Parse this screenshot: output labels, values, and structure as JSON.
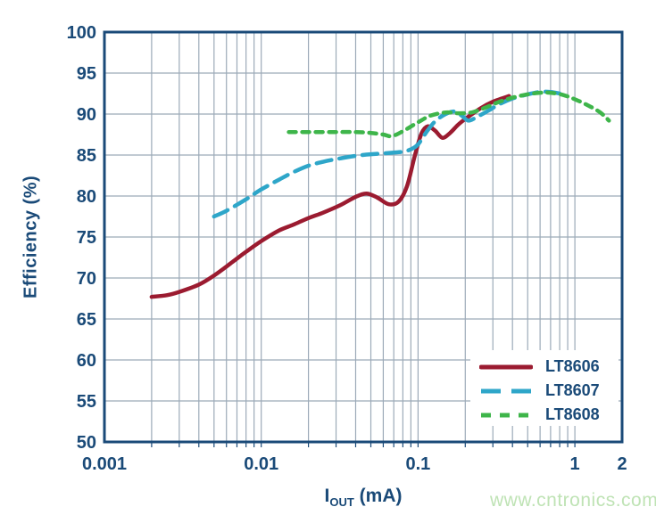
{
  "watermark": {
    "text": "www.cntronics.com"
  },
  "colors": {
    "axis_navy": "#1A4A78",
    "grid_gray": "#9CAAB8",
    "background": "#FFFFFF",
    "watermark_green": "#BFE3B5"
  },
  "chart_data": {
    "type": "line",
    "title": "",
    "ylabel": "Efficiency (%)",
    "xlabel": "IOUT (mA)",
    "xlabel_parts": {
      "symbol": "I",
      "subscript": "OUT",
      "unit": "(mA)"
    },
    "x_scale": "log",
    "xlim": [
      0.001,
      2
    ],
    "ylim": [
      50,
      100
    ],
    "grid": true,
    "legend_position": "bottom-right",
    "y_ticks": [
      {
        "value": 100,
        "label": "100"
      },
      {
        "value": 95,
        "label": "95"
      },
      {
        "value": 90,
        "label": "90"
      },
      {
        "value": 85,
        "label": "85"
      },
      {
        "value": 80,
        "label": "80"
      },
      {
        "value": 75,
        "label": "75"
      },
      {
        "value": 70,
        "label": "70"
      },
      {
        "value": 65,
        "label": "65"
      },
      {
        "value": 60,
        "label": "60"
      },
      {
        "value": 55,
        "label": "55"
      },
      {
        "value": 50,
        "label": "50"
      }
    ],
    "x_ticks": [
      {
        "value": 0.001,
        "label": "0.001"
      },
      {
        "value": 0.01,
        "label": "0.01"
      },
      {
        "value": 0.1,
        "label": "0.1"
      },
      {
        "value": 1,
        "label": "1"
      },
      {
        "value": 2,
        "label": "2"
      }
    ],
    "series": [
      {
        "name": "LT8606",
        "color": "#9B1B30",
        "style": "solid",
        "points": [
          [
            0.002,
            67.7
          ],
          [
            0.0025,
            67.9
          ],
          [
            0.003,
            68.3
          ],
          [
            0.004,
            69.2
          ],
          [
            0.005,
            70.3
          ],
          [
            0.0065,
            71.9
          ],
          [
            0.008,
            73.2
          ],
          [
            0.01,
            74.5
          ],
          [
            0.013,
            75.8
          ],
          [
            0.016,
            76.5
          ],
          [
            0.02,
            77.3
          ],
          [
            0.025,
            78.0
          ],
          [
            0.032,
            78.9
          ],
          [
            0.04,
            79.9
          ],
          [
            0.047,
            80.3
          ],
          [
            0.055,
            79.8
          ],
          [
            0.065,
            79.0
          ],
          [
            0.075,
            79.3
          ],
          [
            0.085,
            81.2
          ],
          [
            0.095,
            84.8
          ],
          [
            0.105,
            87.6
          ],
          [
            0.115,
            88.5
          ],
          [
            0.128,
            88.0
          ],
          [
            0.143,
            87.1
          ],
          [
            0.16,
            87.7
          ],
          [
            0.18,
            88.7
          ],
          [
            0.2,
            89.4
          ],
          [
            0.25,
            90.7
          ],
          [
            0.3,
            91.5
          ],
          [
            0.38,
            92.2
          ]
        ]
      },
      {
        "name": "LT8607",
        "color": "#2EA6C9",
        "style": "long-dash",
        "points": [
          [
            0.005,
            77.5
          ],
          [
            0.006,
            78.2
          ],
          [
            0.008,
            79.6
          ],
          [
            0.01,
            80.8
          ],
          [
            0.013,
            82.0
          ],
          [
            0.016,
            82.9
          ],
          [
            0.02,
            83.7
          ],
          [
            0.025,
            84.2
          ],
          [
            0.03,
            84.5
          ],
          [
            0.04,
            84.9
          ],
          [
            0.05,
            85.1
          ],
          [
            0.06,
            85.2
          ],
          [
            0.07,
            85.3
          ],
          [
            0.08,
            85.4
          ],
          [
            0.09,
            85.7
          ],
          [
            0.1,
            86.3
          ],
          [
            0.115,
            88.0
          ],
          [
            0.13,
            89.2
          ],
          [
            0.15,
            90.0
          ],
          [
            0.17,
            90.3
          ],
          [
            0.19,
            89.8
          ],
          [
            0.21,
            89.2
          ],
          [
            0.24,
            89.7
          ],
          [
            0.28,
            90.4
          ],
          [
            0.33,
            91.2
          ],
          [
            0.4,
            91.9
          ],
          [
            0.5,
            92.4
          ],
          [
            0.6,
            92.7
          ],
          [
            0.7,
            92.7
          ],
          [
            0.8,
            92.5
          ]
        ]
      },
      {
        "name": "LT8608",
        "color": "#3EB54A",
        "style": "short-dash",
        "points": [
          [
            0.015,
            87.8
          ],
          [
            0.02,
            87.8
          ],
          [
            0.03,
            87.8
          ],
          [
            0.04,
            87.8
          ],
          [
            0.05,
            87.7
          ],
          [
            0.06,
            87.5
          ],
          [
            0.068,
            87.3
          ],
          [
            0.08,
            87.9
          ],
          [
            0.1,
            89.0
          ],
          [
            0.12,
            89.8
          ],
          [
            0.15,
            90.2
          ],
          [
            0.18,
            90.1
          ],
          [
            0.22,
            90.2
          ],
          [
            0.27,
            90.8
          ],
          [
            0.33,
            91.5
          ],
          [
            0.4,
            92.0
          ],
          [
            0.5,
            92.4
          ],
          [
            0.6,
            92.6
          ],
          [
            0.7,
            92.6
          ],
          [
            0.85,
            92.3
          ],
          [
            1.0,
            91.8
          ],
          [
            1.2,
            91.1
          ],
          [
            1.45,
            90.2
          ],
          [
            1.65,
            89.2
          ]
        ]
      }
    ]
  }
}
